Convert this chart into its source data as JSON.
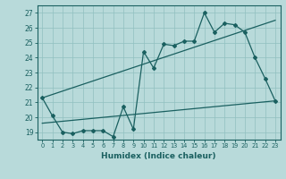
{
  "title": "",
  "xlabel": "Humidex (Indice chaleur)",
  "bg_color": "#b8dada",
  "grid_color": "#90c0c0",
  "line_color": "#1a6060",
  "xlim": [
    -0.5,
    23.5
  ],
  "ylim": [
    18.5,
    27.5
  ],
  "xticks": [
    0,
    1,
    2,
    3,
    4,
    5,
    6,
    7,
    8,
    9,
    10,
    11,
    12,
    13,
    14,
    15,
    16,
    17,
    18,
    19,
    20,
    21,
    22,
    23
  ],
  "yticks": [
    19,
    20,
    21,
    22,
    23,
    24,
    25,
    26,
    27
  ],
  "main_x": [
    0,
    1,
    2,
    3,
    4,
    5,
    6,
    7,
    8,
    9,
    10,
    11,
    12,
    13,
    14,
    15,
    16,
    17,
    18,
    19,
    20,
    21,
    22,
    23
  ],
  "main_y": [
    21.3,
    20.1,
    19.0,
    18.9,
    19.1,
    19.1,
    19.1,
    18.7,
    20.7,
    19.2,
    24.4,
    23.3,
    24.9,
    24.8,
    25.1,
    25.1,
    27.0,
    25.7,
    26.3,
    26.2,
    25.7,
    24.0,
    22.6,
    21.1
  ],
  "line2_x": [
    0,
    23
  ],
  "line2_y": [
    19.6,
    21.1
  ],
  "line3_x": [
    0,
    23
  ],
  "line3_y": [
    21.3,
    26.5
  ]
}
